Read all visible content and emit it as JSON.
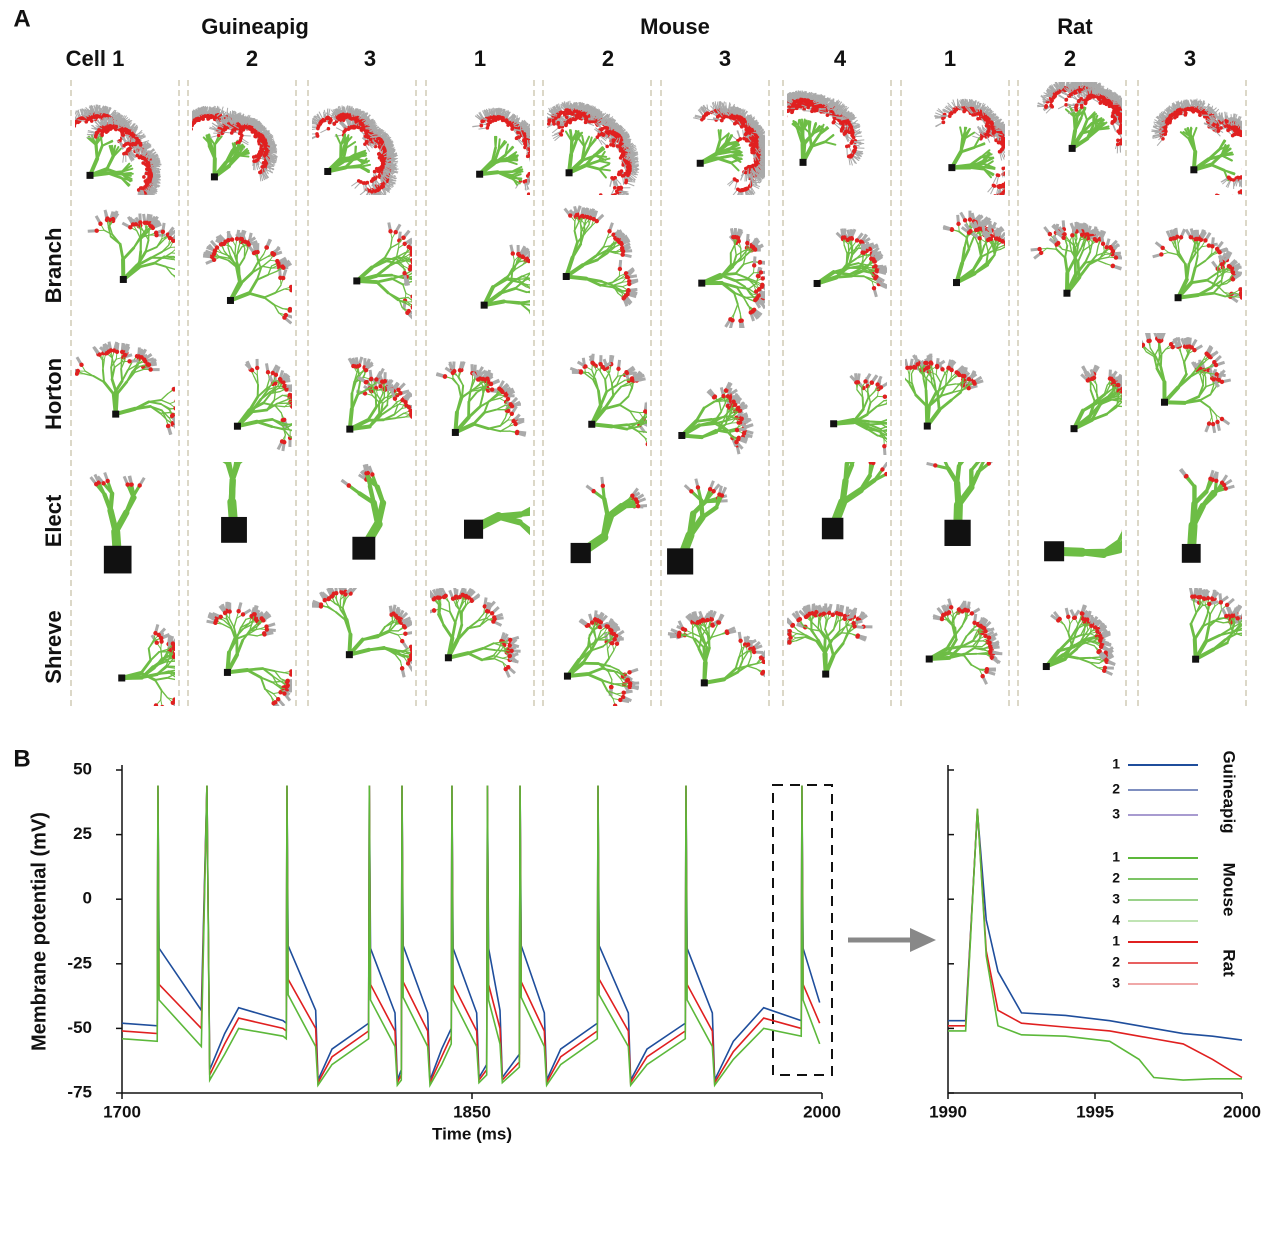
{
  "panel_a": {
    "label": "A",
    "species": [
      "Guineapig",
      "Mouse",
      "Rat"
    ],
    "columns": [
      "Cell 1",
      "2",
      "3",
      "1",
      "2",
      "3",
      "4",
      "1",
      "2",
      "3"
    ],
    "rows": [
      "Branch",
      "Horton",
      "Elect",
      "Shreve"
    ]
  },
  "panel_b_label": "B",
  "chart_data": [
    {
      "type": "line",
      "xlabel": "Time (ms)",
      "ylabel": "Membrane potential (mV)",
      "x": [
        1700,
        1715.1,
        1715.4,
        1715.9,
        1734,
        1736.4,
        1737.6,
        1744,
        1750,
        1769,
        1770.4,
        1770.7,
        1771.2,
        1783,
        1784,
        1790,
        1805.7,
        1806,
        1806.5,
        1817,
        1818,
        1819.7,
        1820,
        1820.5,
        1831,
        1832,
        1837,
        1841.1,
        1841.4,
        1841.9,
        1852,
        1853,
        1856.3,
        1856.6,
        1857.1,
        1862,
        1863,
        1870.3,
        1870.6,
        1871.1,
        1881,
        1882,
        1888,
        1903.7,
        1904,
        1904.5,
        1917,
        1918,
        1925,
        1941.4,
        1941.7,
        1942.2,
        1953,
        1954,
        1962,
        1975,
        1991.1,
        1991.4,
        1991.9,
        1999
      ],
      "series": [
        {
          "color": "#1f4e9c",
          "values": [
            -48,
            -49,
            44,
            -19,
            -43,
            44,
            -66,
            -52,
            -42,
            -47,
            -48,
            44,
            -18,
            -43,
            -70,
            -58,
            -48,
            44,
            -19,
            -44,
            -70,
            -66,
            44,
            -18,
            -44,
            -70,
            -58,
            -50,
            44,
            -19,
            -44,
            -69,
            -64,
            44,
            -19,
            -43,
            -69,
            -60,
            44,
            -18,
            -44,
            -70,
            -58,
            -48,
            44,
            -18,
            -44,
            -70,
            -58,
            -48,
            44,
            -19,
            -44,
            -70,
            -55,
            -42,
            -47,
            44,
            -19,
            -40
          ]
        },
        {
          "color": "#e02020",
          "values": [
            -51,
            -52,
            44,
            -33,
            -50,
            44,
            -68,
            -56,
            -46,
            -50,
            -51,
            44,
            -31,
            -50,
            -71,
            -61,
            -51,
            44,
            -33,
            -51,
            -71,
            -68,
            44,
            -32,
            -51,
            -71,
            -61,
            -53,
            44,
            -33,
            -51,
            -70,
            -66,
            44,
            -33,
            -50,
            -70,
            -63,
            44,
            -32,
            -51,
            -71,
            -61,
            -51,
            44,
            -31,
            -51,
            -71,
            -61,
            -51,
            44,
            -33,
            -51,
            -71,
            -59,
            -46,
            -50,
            44,
            -33,
            -48
          ]
        },
        {
          "color": "#5cb83a",
          "values": [
            -54,
            -55,
            44,
            -39,
            -57,
            44,
            -70,
            -60,
            -50,
            -53,
            -54,
            44,
            -37,
            -57,
            -72,
            -64,
            -54,
            44,
            -39,
            -57,
            -72,
            -70,
            44,
            -38,
            -57,
            -72,
            -64,
            -56,
            44,
            -39,
            -57,
            -71,
            -68,
            44,
            -39,
            -56,
            -71,
            -65,
            44,
            -38,
            -57,
            -72,
            -64,
            -54,
            44,
            -37,
            -57,
            -72,
            -64,
            -54,
            44,
            -39,
            -57,
            -72,
            -62,
            -50,
            -53,
            44,
            -39,
            -56
          ]
        }
      ],
      "xlim": [
        1700,
        2000
      ],
      "xticks": [
        1700,
        1850,
        2000
      ],
      "ylim": [
        -75,
        50
      ],
      "yticks": [
        -75,
        -50,
        -25,
        0,
        25,
        50
      ]
    },
    {
      "type": "line",
      "x": [
        1990,
        1990.6,
        1991,
        1991.3,
        1991.7,
        1992.5,
        1994,
        1995.5,
        1996.5,
        1997,
        1998,
        1999,
        2000
      ],
      "series": [
        {
          "color": "#1f4e9c",
          "values": [
            -47,
            -47,
            34,
            -8,
            -28,
            -44,
            -45,
            -47,
            -49,
            -50,
            -52,
            -53,
            -54.5
          ]
        },
        {
          "color": "#e02020",
          "values": [
            -49,
            -49,
            35,
            -20,
            -43,
            -48,
            -49.5,
            -51,
            -53,
            -54,
            -56,
            -62,
            -69
          ]
        },
        {
          "color": "#5cb83a",
          "values": [
            -51,
            -51,
            35,
            -22,
            -49,
            -52.5,
            -53,
            -55,
            -62,
            -69,
            -70,
            -69.5,
            -69.5
          ]
        }
      ],
      "xlim": [
        1990,
        2000
      ],
      "xticks": [
        1990,
        1995,
        2000
      ],
      "ylim": [
        -75,
        50
      ],
      "yticks": [
        -75,
        -50,
        -25,
        0,
        25,
        50
      ],
      "ytick_labels": false,
      "legend": {
        "groups": [
          {
            "name": "Guineapig",
            "entries": [
              {
                "name": "1",
                "color": "#1f4e9c"
              },
              {
                "name": "2",
                "color": "#7f8fc0"
              },
              {
                "name": "3",
                "color": "#a89bd0"
              }
            ]
          },
          {
            "name": "Mouse",
            "entries": [
              {
                "name": "1",
                "color": "#5cb83a"
              },
              {
                "name": "2",
                "color": "#7cc465"
              },
              {
                "name": "3",
                "color": "#9ad28a"
              },
              {
                "name": "4",
                "color": "#c0e4b4"
              }
            ]
          },
          {
            "name": "Rat",
            "entries": [
              {
                "name": "1",
                "color": "#e02020"
              },
              {
                "name": "2",
                "color": "#e86060"
              },
              {
                "name": "3",
                "color": "#f0a8a8"
              }
            ]
          }
        ]
      }
    }
  ]
}
